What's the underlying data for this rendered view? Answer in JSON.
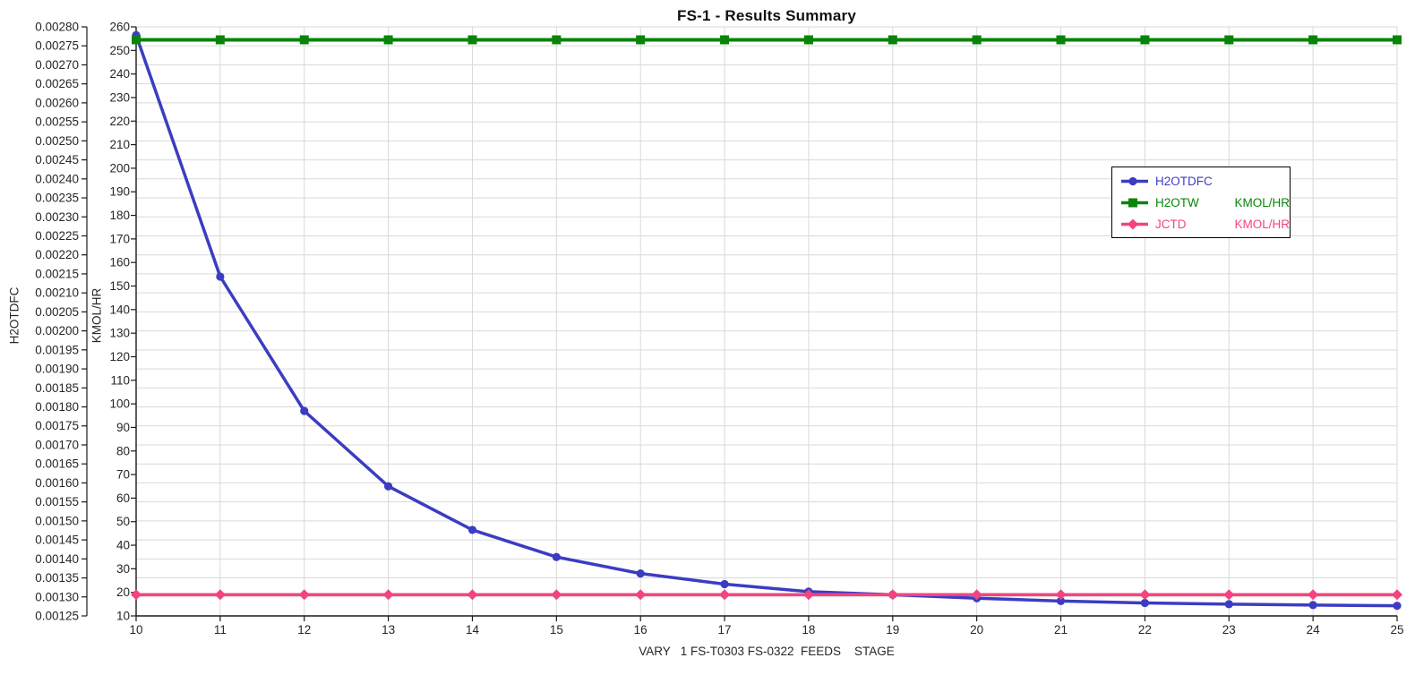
{
  "title": "FS-1 - Results Summary",
  "chart_data": {
    "type": "line",
    "title": "FS-1 - Results Summary",
    "xlabel": "VARY   1 FS-T0303 FS-0322  FEEDS    STAGE",
    "grid": true,
    "background": "#ffffff",
    "grid_color": "#d9d9d9",
    "axis_color": "#1a1a1a",
    "tick_label_color": "#262626",
    "x": [
      10,
      11,
      12,
      13,
      14,
      15,
      16,
      17,
      18,
      19,
      20,
      21,
      22,
      23,
      24,
      25
    ],
    "x_tick_labels": [
      "10",
      "11",
      "12",
      "13",
      "14",
      "15",
      "16",
      "17",
      "18",
      "19",
      "20",
      "21",
      "22",
      "23",
      "24",
      "25"
    ],
    "axes": {
      "x": {
        "min": 10,
        "max": 25,
        "title": "VARY   1 FS-T0303 FS-0322  FEEDS    STAGE"
      },
      "left_outer": {
        "title": "H2OTDFC",
        "min": 0.00125,
        "max": 0.0028,
        "tick_step": 5e-05,
        "tick_labels": [
          "0.00280",
          "0.00275",
          "0.00270",
          "0.00265",
          "0.00260",
          "0.00255",
          "0.00250",
          "0.00245",
          "0.00240",
          "0.00235",
          "0.00230",
          "0.00225",
          "0.00220",
          "0.00215",
          "0.00210",
          "0.00205",
          "0.00200",
          "0.00195",
          "0.00190",
          "0.00185",
          "0.00180",
          "0.00175",
          "0.00170",
          "0.00165",
          "0.00160",
          "0.00155",
          "0.00150",
          "0.00145",
          "0.00140",
          "0.00135",
          "0.00130",
          "0.00125"
        ]
      },
      "left_inner": {
        "title": "KMOL/HR",
        "min": 10,
        "max": 260,
        "tick_step": 10,
        "tick_labels": [
          "260",
          "250",
          "240",
          "230",
          "220",
          "210",
          "200",
          "190",
          "180",
          "170",
          "160",
          "150",
          "140",
          "130",
          "120",
          "110",
          "100",
          "90",
          "80",
          "70",
          "60",
          "50",
          "40",
          "30",
          "20",
          "10"
        ]
      }
    },
    "series": [
      {
        "name": "H2OTDFC",
        "unit_label": "",
        "axis": "left_outer",
        "color": "#3c3cc2",
        "marker": "circle",
        "line_width": 3.5,
        "values": [
          0.0027783,
          0.0021428,
          0.0017894,
          0.001591,
          0.0014763,
          0.001405,
          0.0013616,
          0.0013337,
          0.0013139,
          0.0013058,
          0.0012965,
          0.0012891,
          0.0012841,
          0.001281,
          0.0012785,
          0.0012767
        ]
      },
      {
        "name": "H2OTW",
        "unit_label": "KMOL/HR",
        "axis": "left_inner",
        "color": "#098409",
        "marker": "square",
        "line_width": 4,
        "values": [
          254.5,
          254.5,
          254.5,
          254.5,
          254.5,
          254.5,
          254.5,
          254.5,
          254.5,
          254.5,
          254.5,
          254.5,
          254.5,
          254.5,
          254.5,
          254.5
        ]
      },
      {
        "name": "JCTD",
        "unit_label": "KMOL/HR",
        "axis": "left_inner",
        "color": "#f5437f",
        "marker": "diamond",
        "line_width": 3.5,
        "values": [
          19,
          19,
          19,
          19,
          19,
          19,
          19,
          19,
          19,
          19,
          19,
          19,
          19,
          19,
          19,
          19
        ]
      }
    ],
    "legend": {
      "position": "upper-right-inside",
      "entries": [
        {
          "label": "H2OTDFC",
          "unit": ""
        },
        {
          "label": "H2OTW",
          "unit": "KMOL/HR"
        },
        {
          "label": "JCTD",
          "unit": "KMOL/HR"
        }
      ]
    }
  }
}
